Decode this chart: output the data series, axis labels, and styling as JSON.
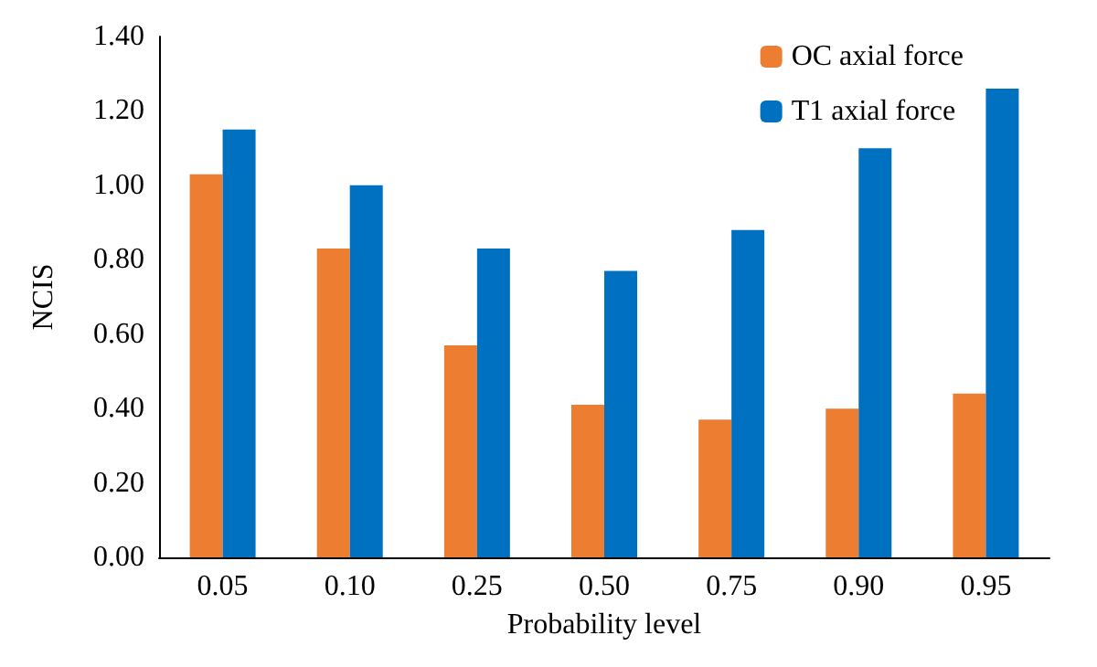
{
  "chart_data": {
    "type": "bar",
    "xlabel": "Probability level",
    "ylabel": "NCIS",
    "categories": [
      "0.05",
      "0.10",
      "0.25",
      "0.50",
      "0.75",
      "0.90",
      "0.95"
    ],
    "series": [
      {
        "name": "OC axial force",
        "color": "#ed7d31",
        "values": [
          1.03,
          0.83,
          0.57,
          0.41,
          0.37,
          0.4,
          0.44
        ]
      },
      {
        "name": "T1 axial force",
        "color": "#0070c0",
        "values": [
          1.15,
          1.0,
          0.83,
          0.77,
          0.88,
          1.1,
          1.26
        ]
      }
    ],
    "ylim": [
      0,
      1.4
    ],
    "yticks": [
      {
        "value": 0,
        "label": "0.00"
      },
      {
        "value": 0.2,
        "label": "0.20"
      },
      {
        "value": 0.4,
        "label": "0.40"
      },
      {
        "value": 0.6,
        "label": "0.60"
      },
      {
        "value": 0.8,
        "label": "0.80"
      },
      {
        "value": 1,
        "label": "1.00"
      },
      {
        "value": 1.2,
        "label": "1.20"
      },
      {
        "value": 1.4,
        "label": "1.40"
      }
    ],
    "grid": false,
    "legend": "top right"
  }
}
